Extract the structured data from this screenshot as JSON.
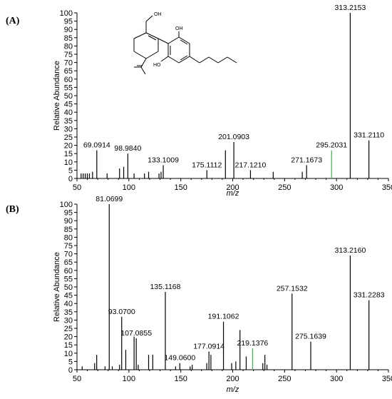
{
  "chart_data": [
    {
      "type": "bar",
      "panel_label": "(A)",
      "xlabel": "m/z",
      "ylabel": "Relative Abundance",
      "xlim": [
        50,
        350
      ],
      "ylim": [
        0,
        100
      ],
      "xticks": [
        50,
        100,
        150,
        200,
        250,
        300,
        350
      ],
      "yticks": [
        0,
        5,
        10,
        15,
        20,
        25,
        30,
        35,
        40,
        45,
        50,
        55,
        60,
        65,
        70,
        75,
        80,
        85,
        90,
        95,
        100
      ],
      "structure_labels": [
        "OH",
        "OH",
        "HO"
      ],
      "peaks": [
        {
          "mz": 54.0,
          "intensity": 3
        },
        {
          "mz": 56.0,
          "intensity": 3
        },
        {
          "mz": 58.0,
          "intensity": 3
        },
        {
          "mz": 60.0,
          "intensity": 3
        },
        {
          "mz": 62.0,
          "intensity": 3
        },
        {
          "mz": 65.0,
          "intensity": 4
        },
        {
          "mz": 69.0914,
          "intensity": 17,
          "label": "69.0914"
        },
        {
          "mz": 79.0,
          "intensity": 3
        },
        {
          "mz": 91.0,
          "intensity": 6
        },
        {
          "mz": 95.0,
          "intensity": 7
        },
        {
          "mz": 98.984,
          "intensity": 15,
          "label": "98.9840"
        },
        {
          "mz": 105.0,
          "intensity": 3
        },
        {
          "mz": 115.0,
          "intensity": 3
        },
        {
          "mz": 119.0,
          "intensity": 4
        },
        {
          "mz": 129.0,
          "intensity": 3
        },
        {
          "mz": 131.0,
          "intensity": 4
        },
        {
          "mz": 133.1009,
          "intensity": 8,
          "label": "133.1009"
        },
        {
          "mz": 175.1112,
          "intensity": 5,
          "label": "175.1112"
        },
        {
          "mz": 193.0,
          "intensity": 17
        },
        {
          "mz": 201.0903,
          "intensity": 22,
          "label": "201.0903"
        },
        {
          "mz": 217.121,
          "intensity": 5,
          "label": "217.1210"
        },
        {
          "mz": 239.0,
          "intensity": 4
        },
        {
          "mz": 267.0,
          "intensity": 4
        },
        {
          "mz": 271.1673,
          "intensity": 8,
          "label": "271.1673"
        },
        {
          "mz": 295.2031,
          "intensity": 17,
          "label": "295.2031",
          "color": "#3cb44b"
        },
        {
          "mz": 313.2153,
          "intensity": 100,
          "label": "313.2153"
        },
        {
          "mz": 331.211,
          "intensity": 23,
          "label": "331.2110"
        }
      ]
    },
    {
      "type": "bar",
      "panel_label": "(B)",
      "xlabel": "m/z",
      "ylabel": "Relative Abundance",
      "xlim": [
        50,
        350
      ],
      "ylim": [
        0,
        100
      ],
      "xticks": [
        50,
        100,
        150,
        200,
        250,
        300,
        350
      ],
      "yticks": [
        0,
        5,
        10,
        15,
        20,
        25,
        30,
        35,
        40,
        45,
        50,
        55,
        60,
        65,
        70,
        75,
        80,
        85,
        90,
        95,
        100
      ],
      "peaks": [
        {
          "mz": 55.0,
          "intensity": 2
        },
        {
          "mz": 67.0,
          "intensity": 4
        },
        {
          "mz": 69.0,
          "intensity": 9
        },
        {
          "mz": 77.0,
          "intensity": 2
        },
        {
          "mz": 81.0699,
          "intensity": 100,
          "label": "81.0699"
        },
        {
          "mz": 84.0,
          "intensity": 2
        },
        {
          "mz": 91.0,
          "intensity": 3
        },
        {
          "mz": 93.07,
          "intensity": 32,
          "label": "93.0700"
        },
        {
          "mz": 97.0,
          "intensity": 12
        },
        {
          "mz": 105.0,
          "intensity": 20
        },
        {
          "mz": 107.0855,
          "intensity": 19,
          "label": "107.0855"
        },
        {
          "mz": 109.0,
          "intensity": 3
        },
        {
          "mz": 119.0,
          "intensity": 9
        },
        {
          "mz": 123.0,
          "intensity": 9
        },
        {
          "mz": 135.1168,
          "intensity": 47,
          "label": "135.1168"
        },
        {
          "mz": 145.0,
          "intensity": 2
        },
        {
          "mz": 149.06,
          "intensity": 4,
          "label": "149.0600"
        },
        {
          "mz": 159.0,
          "intensity": 2
        },
        {
          "mz": 161.0,
          "intensity": 3
        },
        {
          "mz": 175.0,
          "intensity": 4
        },
        {
          "mz": 177.0914,
          "intensity": 11,
          "label": "177.0914"
        },
        {
          "mz": 179.0,
          "intensity": 9
        },
        {
          "mz": 191.1062,
          "intensity": 29,
          "label": "191.1062"
        },
        {
          "mz": 199.0,
          "intensity": 4
        },
        {
          "mz": 203.0,
          "intensity": 5
        },
        {
          "mz": 207.0,
          "intensity": 24
        },
        {
          "mz": 213.0,
          "intensity": 8
        },
        {
          "mz": 219.1376,
          "intensity": 13,
          "label": "219.1376",
          "color": "#3cb44b"
        },
        {
          "mz": 229.0,
          "intensity": 4
        },
        {
          "mz": 231.0,
          "intensity": 9
        },
        {
          "mz": 233.0,
          "intensity": 3
        },
        {
          "mz": 257.1532,
          "intensity": 46,
          "label": "257.1532"
        },
        {
          "mz": 275.1639,
          "intensity": 17,
          "label": "275.1639"
        },
        {
          "mz": 313.216,
          "intensity": 69,
          "label": "313.2160"
        },
        {
          "mz": 331.2283,
          "intensity": 42,
          "label": "331.2283"
        }
      ]
    }
  ]
}
